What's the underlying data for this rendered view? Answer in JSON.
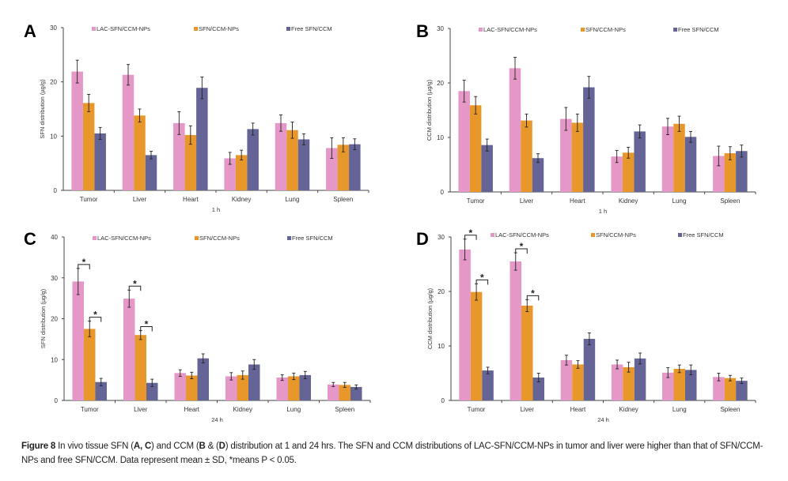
{
  "colors": {
    "LAC-SFN/CCM-NPs": "#e597c8",
    "SFN/CCM-NPs": "#e8982a",
    "Free SFN/CCM": "#656496",
    "error_bar": "#222222"
  },
  "chart_data": [
    {
      "panel": "A",
      "type": "bar",
      "ylabel": "SFN distribution (µg/g)",
      "xlabel": "1 h",
      "ylim": [
        0,
        30
      ],
      "yticks": [
        0,
        10,
        20,
        30
      ],
      "legend": "top",
      "grid": false,
      "categories": [
        "Tumor",
        "Liver",
        "Heart",
        "Kidney",
        "Lung",
        "Spleen"
      ],
      "series": [
        {
          "name": "LAC-SFN/CCM-NPs",
          "values": [
            21.9,
            21.3,
            12.4,
            5.9,
            12.4,
            7.8
          ],
          "errors": [
            2.1,
            1.9,
            2.1,
            1.1,
            1.5,
            1.9
          ]
        },
        {
          "name": "SFN/CCM-NPs",
          "values": [
            16.1,
            13.8,
            10.2,
            6.5,
            11.1,
            8.4
          ],
          "errors": [
            1.6,
            1.2,
            1.7,
            0.9,
            1.5,
            1.3
          ]
        },
        {
          "name": "Free SFN/CCM",
          "values": [
            10.5,
            6.5,
            18.9,
            11.3,
            9.4,
            8.5
          ],
          "errors": [
            1.1,
            0.7,
            2.0,
            1.1,
            1.0,
            1.0
          ]
        }
      ],
      "significance": []
    },
    {
      "panel": "B",
      "type": "bar",
      "ylabel": "CCM distribution (µg/g)",
      "xlabel": "1 h",
      "ylim": [
        0,
        30
      ],
      "yticks": [
        0,
        10,
        20,
        30
      ],
      "legend": "top",
      "grid": false,
      "categories": [
        "Tumor",
        "Liver",
        "Heart",
        "Kidney",
        "Lung",
        "Spleen"
      ],
      "series": [
        {
          "name": "LAC-SFN/CCM-NPs",
          "values": [
            18.5,
            22.7,
            13.4,
            6.5,
            12.0,
            6.6
          ],
          "errors": [
            2.0,
            2.0,
            2.1,
            1.1,
            1.5,
            1.8
          ]
        },
        {
          "name": "SFN/CCM-NPs",
          "values": [
            15.9,
            13.1,
            12.7,
            7.2,
            12.5,
            7.1
          ],
          "errors": [
            1.6,
            1.2,
            1.6,
            1.0,
            1.4,
            1.2
          ]
        },
        {
          "name": "Free SFN/CCM",
          "values": [
            8.6,
            6.2,
            19.2,
            11.1,
            10.1,
            7.5
          ],
          "errors": [
            1.1,
            0.8,
            2.0,
            1.2,
            1.0,
            1.1
          ]
        }
      ],
      "significance": []
    },
    {
      "panel": "C",
      "type": "bar",
      "ylabel": "SFN distribution (µg/g)",
      "xlabel": "24 h",
      "ylim": [
        0,
        40
      ],
      "yticks": [
        0,
        10,
        20,
        30,
        40
      ],
      "legend": "top",
      "grid": false,
      "categories": [
        "Tumor",
        "Liver",
        "Heart",
        "Kidney",
        "Lung",
        "Spleen"
      ],
      "series": [
        {
          "name": "LAC-SFN/CCM-NPs",
          "values": [
            29.1,
            24.9,
            6.7,
            5.9,
            5.6,
            3.9
          ],
          "errors": [
            3.2,
            2.1,
            0.8,
            0.9,
            0.7,
            0.5
          ]
        },
        {
          "name": "SFN/CCM-NPs",
          "values": [
            17.5,
            16.0,
            6.1,
            6.2,
            5.9,
            3.8
          ],
          "errors": [
            1.9,
            1.1,
            0.8,
            1.0,
            0.8,
            0.6
          ]
        },
        {
          "name": "Free SFN/CCM",
          "values": [
            4.5,
            4.3,
            10.3,
            8.8,
            6.2,
            3.3
          ],
          "errors": [
            0.9,
            0.9,
            1.1,
            1.2,
            0.9,
            0.5
          ]
        }
      ],
      "significance": [
        {
          "category": "Tumor",
          "between": [
            0,
            1
          ],
          "label": "*"
        },
        {
          "category": "Tumor",
          "between": [
            1,
            2
          ],
          "label": "*"
        },
        {
          "category": "Liver",
          "between": [
            0,
            1
          ],
          "label": "*"
        },
        {
          "category": "Liver",
          "between": [
            1,
            2
          ],
          "label": "*"
        }
      ]
    },
    {
      "panel": "D",
      "type": "bar",
      "ylabel": "CCM distribution (µg/g)",
      "xlabel": "24 h",
      "ylim": [
        0,
        30
      ],
      "yticks": [
        0,
        10,
        20,
        30
      ],
      "legend": "top",
      "grid": false,
      "categories": [
        "Tumor",
        "Liver",
        "Heart",
        "Kidney",
        "Lung",
        "Spleen"
      ],
      "series": [
        {
          "name": "LAC-SFN/CCM-NPs",
          "values": [
            27.7,
            25.5,
            7.4,
            6.6,
            5.1,
            4.3
          ],
          "errors": [
            1.9,
            1.6,
            0.9,
            0.8,
            0.9,
            0.7
          ]
        },
        {
          "name": "SFN/CCM-NPs",
          "values": [
            19.9,
            17.4,
            6.6,
            6.1,
            5.8,
            4.1
          ],
          "errors": [
            1.5,
            1.1,
            0.7,
            0.9,
            0.7,
            0.5
          ]
        },
        {
          "name": "Free SFN/CCM",
          "values": [
            5.5,
            4.2,
            11.3,
            7.7,
            5.6,
            3.6
          ],
          "errors": [
            0.6,
            0.8,
            1.1,
            1.0,
            0.9,
            0.5
          ]
        }
      ],
      "significance": [
        {
          "category": "Tumor",
          "between": [
            0,
            1
          ],
          "label": "*"
        },
        {
          "category": "Tumor",
          "between": [
            1,
            2
          ],
          "label": "*"
        },
        {
          "category": "Liver",
          "between": [
            0,
            1
          ],
          "label": "*"
        },
        {
          "category": "Liver",
          "between": [
            1,
            2
          ],
          "label": "*"
        }
      ]
    }
  ],
  "caption": {
    "figure_label": "Figure 8",
    "part1": " In vivo tissue SFN (",
    "bold1": "A, C",
    "part2": ") and CCM (",
    "bold2": "B",
    "part3": " & (",
    "bold3": "D",
    "part4": ") distribution at 1 and 24 hrs. The SFN and CCM distributions of LAC-SFN/CCM-NPs in tumor and liver were higher than that of SFN/CCM-NPs and free SFN/CCM. Data represent mean ± SD, *means P < 0.05."
  }
}
